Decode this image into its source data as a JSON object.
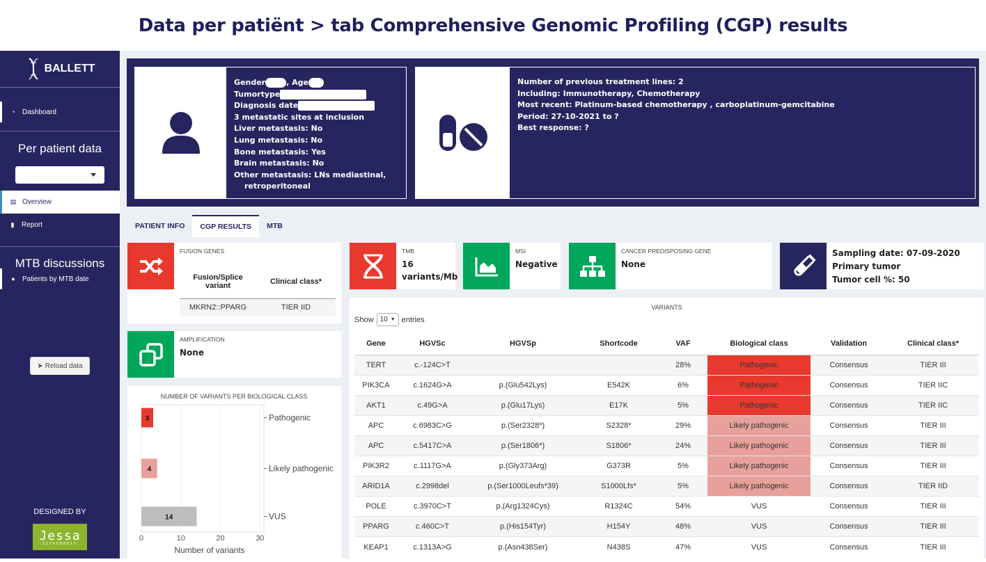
{
  "slide_title": "Data per patiënt  > tab Comprehensive Genomic Profiling (CGP) results",
  "sidebar": {
    "logo_text": "BALLETT",
    "dashboard": "Dashboard",
    "per_patient_header": "Per patient data",
    "overview": "Overview",
    "report": "Report",
    "mtb_header": "MTB discussions",
    "patients_by_mtb": "Patients by MTB date",
    "reload": "Reload data",
    "designed_by": "DESIGNED BY",
    "jessa": "Jessa",
    "jessa_sub": "ZIEKENHUIS"
  },
  "patient": {
    "gender_label": "Gender",
    "age_label": ", Age",
    "tumortype_label": "Tumortype",
    "diagnosis_label": "Diagnosis date",
    "l4": "3 metastatic sites at inclusion",
    "l5": "Liver metastasis: No",
    "l6": "Lung metastasis: No",
    "l7": "Bone metastasis: Yes",
    "l8": "Brain metastasis: No",
    "l9": "Other metastasis: LNs mediastinal,",
    "l10": "retroperitoneal"
  },
  "treatment": {
    "l1": "Number of previous treatment lines: 2",
    "l2": "Including: Immunotherapy, Chemotherapy",
    "l3": "Most recent: Platinum-based chemotherapy , carboplatinum-gemcitabine",
    "l4": "Period: 27-10-2021 to ?",
    "l5": "Best response: ?"
  },
  "tabs": [
    "PATIENT INFO",
    "CGP RESULTS",
    "MTB"
  ],
  "fusion": {
    "title": "FUSION GENES",
    "col1": "Fusion/Splice variant",
    "col2": "Clinical class*",
    "row_variant": "MKRN2::PPARG",
    "row_class": "TIER IID"
  },
  "amplification": {
    "title": "AMPLIFICATION",
    "value": "None"
  },
  "tmb": {
    "title": "TMB",
    "value_line1": "16",
    "value_line2": "variants/Mb"
  },
  "msi": {
    "title": "MSI",
    "value": "Negative"
  },
  "cpg": {
    "title": "CANCER PREDISPOSING GENE",
    "value": "None"
  },
  "sampling": {
    "line1": "Sampling date: 07-09-2020",
    "line2": "Primary tumor",
    "line3": "Tumor cell %: 50"
  },
  "variants": {
    "title": "VARIANTS",
    "show": "Show",
    "entries_value": "10",
    "entries": "entries",
    "headers": [
      "Gene",
      "HGVSc",
      "HGVSp",
      "Shortcode",
      "VAF",
      "Biological class",
      "Validation",
      "Clinical class*"
    ],
    "rows": [
      [
        "TERT",
        "c.-124C>T",
        "",
        "",
        "28%",
        "Pathogenic",
        "Consensus",
        "TIER III"
      ],
      [
        "PIK3CA",
        "c.1624G>A",
        "p.(Glu542Lys)",
        "E542K",
        "6%",
        "Pathogenic",
        "Consensus",
        "TIER IIC"
      ],
      [
        "AKT1",
        "c.49G>A",
        "p.(Glu17Lys)",
        "E17K",
        "5%",
        "Pathogenic",
        "Consensus",
        "TIER IIC"
      ],
      [
        "APC",
        "c.6983C>G",
        "p.(Ser2328*)",
        "S2328*",
        "29%",
        "Likely pathogenic",
        "Consensus",
        "TIER III"
      ],
      [
        "APC",
        "c.5417C>A",
        "p.(Ser1806*)",
        "S1806*",
        "24%",
        "Likely pathogenic",
        "Consensus",
        "TIER III"
      ],
      [
        "PIK3R2",
        "c.1117G>A",
        "p.(Gly373Arg)",
        "G373R",
        "5%",
        "Likely pathogenic",
        "Consensus",
        "TIER III"
      ],
      [
        "ARID1A",
        "c.2998del",
        "p.(Ser1000Leufs*39)",
        "S1000Lfs*",
        "5%",
        "Likely pathogenic",
        "Consensus",
        "TIER IID"
      ],
      [
        "POLE",
        "c.3970C>T",
        "p.(Arg1324Cys)",
        "R1324C",
        "54%",
        "VUS",
        "Consensus",
        "TIER III"
      ],
      [
        "PPARG",
        "c.460C>T",
        "p.(His154Tyr)",
        "H154Y",
        "48%",
        "VUS",
        "Consensus",
        "TIER III"
      ],
      [
        "KEAP1",
        "c.1313A>G",
        "p.(Asn438Ser)",
        "N438S",
        "47%",
        "VUS",
        "Consensus",
        "TIER III"
      ]
    ]
  },
  "chart_data": {
    "type": "bar",
    "orientation": "horizontal",
    "title": "NUMBER OF VARIANTS PER BIOLOGICAL CLASS",
    "categories": [
      "Pathogenic",
      "Likely pathogenic",
      "VUS"
    ],
    "values": [
      3,
      4,
      14
    ],
    "colors": [
      "#e8392f",
      "#e8a09b",
      "#bdbdbd"
    ],
    "xlabel": "Number of variants",
    "xticks": [
      0,
      10,
      20,
      30
    ],
    "xlim": [
      0,
      31
    ]
  },
  "colors": {
    "navy": "#27255f",
    "red": "#e8392f",
    "green": "#00a65a",
    "pathogenic": "#e8392f",
    "likely_pathogenic": "#e8a09b"
  }
}
